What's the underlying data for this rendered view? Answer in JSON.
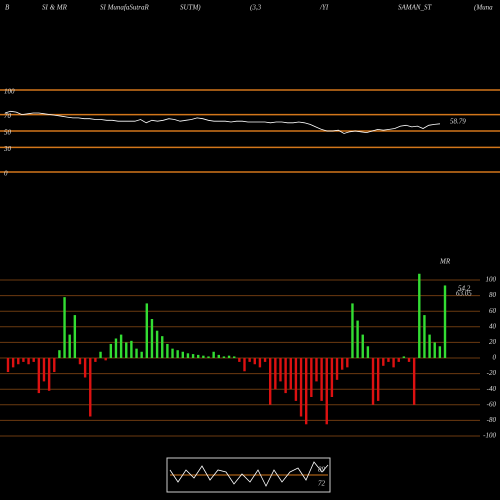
{
  "header": [
    "B",
    "SI & MR",
    "SI MunafaSutraR",
    "SUTM)",
    "(3,3",
    "/YI",
    "SAMAN_ST",
    "(Muna"
  ],
  "chart_data": [
    {
      "type": "line",
      "color": "#ffffff",
      "grid_color": "#d2761a",
      "ylim": [
        0,
        100
      ],
      "yticks": [
        0,
        30,
        50,
        70,
        100
      ],
      "values": [
        72,
        74,
        73,
        70,
        71,
        72,
        72,
        71,
        70,
        69,
        68,
        67,
        66,
        66,
        65,
        65,
        64,
        64,
        63,
        63,
        62,
        62,
        62,
        62,
        64,
        60,
        63,
        62,
        63,
        65,
        64,
        62,
        63,
        64,
        66,
        65,
        63,
        62,
        62,
        62,
        61,
        62,
        62,
        61,
        61,
        61,
        61,
        60,
        61,
        61,
        60,
        60,
        61,
        60,
        58,
        55,
        52,
        50,
        50,
        51,
        47,
        49,
        50,
        49,
        48,
        50,
        52,
        51,
        52,
        53,
        56,
        57,
        55,
        56,
        53,
        57,
        58,
        58.79
      ],
      "annotation": "58.79"
    },
    {
      "type": "bar",
      "label": "MR",
      "pos_color": "#33dd33",
      "neg_color": "#dd1111",
      "grid_color": "#6b3a10",
      "ylim": [
        -100,
        100
      ],
      "yticks": [
        100,
        80,
        60,
        40,
        20,
        0,
        -20,
        -40,
        -60,
        -80,
        -100
      ],
      "values": [
        -18,
        -12,
        -8,
        -5,
        -8,
        -5,
        -45,
        -30,
        -42,
        -18,
        10,
        78,
        30,
        55,
        -8,
        -25,
        -75,
        -5,
        8,
        -3,
        18,
        25,
        30,
        20,
        22,
        12,
        8,
        70,
        50,
        35,
        28,
        18,
        12,
        10,
        8,
        6,
        5,
        4,
        3,
        2,
        8,
        4,
        2,
        3,
        2,
        -5,
        -17,
        -5,
        -8,
        -12,
        -5,
        -60,
        -40,
        -30,
        -45,
        -40,
        -55,
        -75,
        -85,
        -50,
        -30,
        -55,
        -85,
        -50,
        -28,
        -15,
        -12,
        70,
        48,
        30,
        15,
        -60,
        -55,
        -10,
        -5,
        -12,
        -5,
        2,
        -5,
        -60,
        108,
        55,
        30,
        20,
        15,
        93
      ],
      "annotations": [
        "54.2",
        "63.05"
      ]
    }
  ],
  "mini_labels": [
    "89",
    "72"
  ]
}
